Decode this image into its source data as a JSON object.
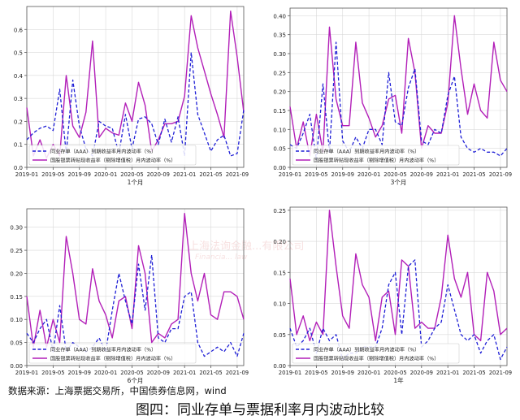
{
  "source_note": "数据来源：上海票据交易所，中国债券信息网，wind",
  "figure_caption": "图四：同业存单与票据利率月内波动比较",
  "watermark": {
    "line1": "上海法询金融...有限公司",
    "line2": "Financia... law"
  },
  "colors": {
    "ncd": "#1f1fd6",
    "bill": "#b21fb8",
    "axis": "#555555",
    "text": "#222222"
  },
  "chart_data": [
    {
      "type": "line",
      "xlabel": "1个月",
      "ylim": [
        0,
        0.7
      ],
      "yticks": [
        0,
        0.1,
        0.2,
        0.3,
        0.4,
        0.5,
        0.6
      ],
      "ytick_labels": [
        "0.0",
        "0.1",
        "0.2",
        "0.3",
        "0.4",
        "0.5",
        "0.6"
      ],
      "x_start": "2019-01",
      "x_end": "2021-10",
      "xtick_labels": [
        "2019-01",
        "2019-05",
        "2019-09",
        "2020-01",
        "2020-05",
        "2020-09",
        "2021-01",
        "2021-05",
        "2021-09"
      ],
      "grid": true,
      "legend_position": "bottom-left",
      "x": [
        "2019-01",
        "2019-02",
        "2019-03",
        "2019-04",
        "2019-05",
        "2019-06",
        "2019-07",
        "2019-08",
        "2019-09",
        "2019-10",
        "2019-11",
        "2019-12",
        "2020-01",
        "2020-02",
        "2020-03",
        "2020-04",
        "2020-05",
        "2020-06",
        "2020-07",
        "2020-08",
        "2020-09",
        "2020-10",
        "2020-11",
        "2020-12",
        "2021-01",
        "2021-02",
        "2021-03",
        "2021-04",
        "2021-05",
        "2021-06",
        "2021-07",
        "2021-08",
        "2021-09",
        "2021-10"
      ],
      "series": [
        {
          "name": "同业存单（AAA）到期收益率月内波动率（%）",
          "style": "dashed",
          "values": [
            0.12,
            0.15,
            0.17,
            0.18,
            0.16,
            0.34,
            0.06,
            0.38,
            0.18,
            0.08,
            0.05,
            0.2,
            0.18,
            0.17,
            0.06,
            0.23,
            0.08,
            0.21,
            0.22,
            0.19,
            0.1,
            0.21,
            0.11,
            0.22,
            0.05,
            0.5,
            0.23,
            0.15,
            0.07,
            0.12,
            0.14,
            0.05,
            0.06,
            0.25
          ]
        },
        {
          "name": "国股银票转贴现收益率（剔除增值税）月内波动率（%）",
          "style": "solid",
          "values": [
            0.26,
            0.05,
            0.12,
            0.04,
            0.1,
            0.05,
            0.4,
            0.18,
            0.13,
            0.24,
            0.55,
            0.13,
            0.17,
            0.15,
            0.14,
            0.28,
            0.2,
            0.37,
            0.27,
            0.07,
            0.12,
            0.19,
            0.19,
            0.2,
            0.31,
            0.66,
            0.52,
            0.42,
            0.32,
            0.23,
            0.13,
            0.68,
            0.48,
            0.24
          ]
        }
      ]
    },
    {
      "type": "line",
      "xlabel": "3个月",
      "ylim": [
        0,
        0.42
      ],
      "yticks": [
        0,
        0.05,
        0.1,
        0.15,
        0.2,
        0.25,
        0.3,
        0.35,
        0.4
      ],
      "ytick_labels": [
        "0.00",
        "0.05",
        "0.10",
        "0.15",
        "0.20",
        "0.25",
        "0.30",
        "0.35",
        "0.40"
      ],
      "x_start": "2019-01",
      "x_end": "2021-10",
      "xtick_labels": [
        "2019-01",
        "2019-05",
        "2019-09",
        "2020-01",
        "2020-05",
        "2020-09",
        "2021-01",
        "2021-05",
        "2021-09"
      ],
      "grid": true,
      "legend_position": "bottom-left",
      "x": [
        "2019-01",
        "2019-02",
        "2019-03",
        "2019-04",
        "2019-05",
        "2019-06",
        "2019-07",
        "2019-08",
        "2019-09",
        "2019-10",
        "2019-11",
        "2019-12",
        "2020-01",
        "2020-02",
        "2020-03",
        "2020-04",
        "2020-05",
        "2020-06",
        "2020-07",
        "2020-08",
        "2020-09",
        "2020-10",
        "2020-11",
        "2020-12",
        "2021-01",
        "2021-02",
        "2021-03",
        "2021-04",
        "2021-05",
        "2021-06",
        "2021-07",
        "2021-08",
        "2021-09",
        "2021-10"
      ],
      "series": [
        {
          "name": "同业存单（AAA）到期收益率月内波动率（%）",
          "style": "dashed",
          "values": [
            0.06,
            0.05,
            0.09,
            0.14,
            0.02,
            0.22,
            0.04,
            0.33,
            0.07,
            0.04,
            0.08,
            0.05,
            0.1,
            0.1,
            0.06,
            0.25,
            0.12,
            0.11,
            0.21,
            0.26,
            0.07,
            0.06,
            0.1,
            0.09,
            0.19,
            0.24,
            0.08,
            0.05,
            0.04,
            0.05,
            0.04,
            0.04,
            0.03,
            0.05
          ]
        },
        {
          "name": "国股银票转贴现收益率（剔除增值税）月内波动率（%）",
          "style": "solid",
          "values": [
            0.16,
            0.05,
            0.12,
            0.03,
            0.14,
            0.04,
            0.37,
            0.18,
            0.11,
            0.11,
            0.33,
            0.17,
            0.13,
            0.08,
            0.11,
            0.18,
            0.19,
            0.09,
            0.34,
            0.25,
            0.05,
            0.11,
            0.09,
            0.09,
            0.17,
            0.4,
            0.26,
            0.14,
            0.22,
            0.15,
            0.13,
            0.33,
            0.23,
            0.2
          ]
        }
      ]
    },
    {
      "type": "line",
      "xlabel": "6个月",
      "ylim": [
        0,
        0.34
      ],
      "yticks": [
        0,
        0.05,
        0.1,
        0.15,
        0.2,
        0.25,
        0.3
      ],
      "ytick_labels": [
        "0.00",
        "0.05",
        "0.10",
        "0.15",
        "0.20",
        "0.25",
        "0.30"
      ],
      "x_start": "2019-01",
      "x_end": "2021-10",
      "xtick_labels": [
        "2019-01",
        "2019-05",
        "2019-09",
        "2020-01",
        "2020-05",
        "2020-09",
        "2021-01",
        "2021-05",
        "2021-09"
      ],
      "grid": true,
      "legend_position": "bottom-left",
      "x": [
        "2019-01",
        "2019-02",
        "2019-03",
        "2019-04",
        "2019-05",
        "2019-06",
        "2019-07",
        "2019-08",
        "2019-09",
        "2019-10",
        "2019-11",
        "2019-12",
        "2020-01",
        "2020-02",
        "2020-03",
        "2020-04",
        "2020-05",
        "2020-06",
        "2020-07",
        "2020-08",
        "2020-09",
        "2020-10",
        "2020-11",
        "2020-12",
        "2021-01",
        "2021-02",
        "2021-03",
        "2021-04",
        "2021-05",
        "2021-06",
        "2021-07",
        "2021-08",
        "2021-09",
        "2021-10"
      ],
      "series": [
        {
          "name": "同业存单（AAA）到期收益率月内波动率（%）",
          "style": "dashed",
          "values": [
            0.07,
            0.05,
            0.08,
            0.1,
            0.03,
            0.13,
            0.03,
            0.05,
            0.04,
            0.03,
            0.04,
            0.06,
            0.03,
            0.12,
            0.2,
            0.14,
            0.09,
            0.22,
            0.12,
            0.24,
            0.06,
            0.05,
            0.08,
            0.08,
            0.15,
            0.16,
            0.05,
            0.02,
            0.03,
            0.04,
            0.03,
            0.05,
            0.02,
            0.07
          ]
        },
        {
          "name": "国股银票转贴现收益率（剔除增值税）月内波动率（%）",
          "style": "solid",
          "values": [
            0.15,
            0.04,
            0.12,
            0.04,
            0.1,
            0.05,
            0.28,
            0.2,
            0.1,
            0.09,
            0.21,
            0.14,
            0.11,
            0.06,
            0.14,
            0.15,
            0.08,
            0.26,
            0.2,
            0.05,
            0.07,
            0.06,
            0.09,
            0.1,
            0.33,
            0.2,
            0.14,
            0.2,
            0.11,
            0.1,
            0.16,
            0.16,
            0.15,
            0.1
          ]
        }
      ]
    },
    {
      "type": "line",
      "xlabel": "1年",
      "ylim": [
        0,
        0.255
      ],
      "yticks": [
        0,
        0.05,
        0.1,
        0.15,
        0.2,
        0.25
      ],
      "ytick_labels": [
        "0.00",
        "0.05",
        "0.10",
        "0.15",
        "0.20",
        "0.25"
      ],
      "x_start": "2019-01",
      "x_end": "2021-10",
      "xtick_labels": [
        "2019-01",
        "2019-05",
        "2019-09",
        "2020-01",
        "2020-05",
        "2020-09",
        "2021-01",
        "2021-05",
        "2021-09"
      ],
      "grid": true,
      "legend_position": "bottom-left",
      "x": [
        "2019-01",
        "2019-02",
        "2019-03",
        "2019-04",
        "2019-05",
        "2019-06",
        "2019-07",
        "2019-08",
        "2019-09",
        "2019-10",
        "2019-11",
        "2019-12",
        "2020-01",
        "2020-02",
        "2020-03",
        "2020-04",
        "2020-05",
        "2020-06",
        "2020-07",
        "2020-08",
        "2020-09",
        "2020-10",
        "2020-11",
        "2020-12",
        "2021-01",
        "2021-02",
        "2021-03",
        "2021-04",
        "2021-05",
        "2021-06",
        "2021-07",
        "2021-08",
        "2021-09",
        "2021-10"
      ],
      "series": [
        {
          "name": "同业存单（AAA）到期收益率月内波动率（%）",
          "style": "dashed",
          "values": [
            0.06,
            0.03,
            0.04,
            0.06,
            0.02,
            0.06,
            0.04,
            0.05,
            0.01,
            0.02,
            0.02,
            0.03,
            0.03,
            0.03,
            0.06,
            0.13,
            0.15,
            0.05,
            0.16,
            0.17,
            0.03,
            0.04,
            0.06,
            0.07,
            0.13,
            0.09,
            0.05,
            0.04,
            0.05,
            0.02,
            0.04,
            0.05,
            0.01,
            0.03
          ]
        },
        {
          "name": "国股银票转贴现收益率（剔除增值税）月内波动率（%）",
          "style": "solid",
          "values": [
            0.14,
            0.05,
            0.08,
            0.04,
            0.07,
            0.05,
            0.25,
            0.16,
            0.08,
            0.06,
            0.18,
            0.13,
            0.11,
            0.04,
            0.11,
            0.12,
            0.05,
            0.17,
            0.16,
            0.06,
            0.07,
            0.06,
            0.06,
            0.11,
            0.21,
            0.14,
            0.11,
            0.15,
            0.05,
            0.04,
            0.15,
            0.12,
            0.05,
            0.06
          ]
        }
      ]
    }
  ]
}
